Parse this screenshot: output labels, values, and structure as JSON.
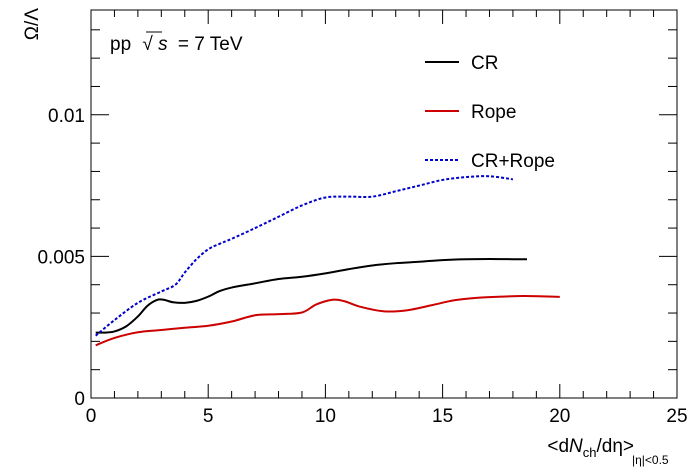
{
  "chart_data": {
    "type": "line",
    "annotation": {
      "prefix": "pp",
      "sqrt_symbol": "√",
      "variable": "s",
      "suffix": "= 7 TeV"
    },
    "xlabel": {
      "open": "<d",
      "N": "N",
      "ch": "ch",
      "rest": "/dη>",
      "sub": "|η|<0.5"
    },
    "ylabel": "Ω/Λ",
    "xlim": [
      0,
      25
    ],
    "ylim": [
      0,
      0.0137
    ],
    "x_ticks": [
      0,
      5,
      10,
      15,
      20,
      25
    ],
    "x_tick_labels": [
      "0",
      "5",
      "10",
      "15",
      "20",
      "25"
    ],
    "y_ticks": [
      0,
      0.005,
      0.01
    ],
    "y_tick_labels": [
      "0",
      "0.005",
      "0.01"
    ],
    "legend_position": "top-right",
    "grid": false,
    "series": [
      {
        "name": "CR",
        "color": "#000000",
        "style": "solid",
        "x": [
          0.2,
          0.6,
          1.0,
          1.5,
          2.0,
          2.4,
          2.8,
          3.1,
          3.5,
          4.0,
          4.5,
          5.0,
          5.5,
          6.0,
          7.0,
          8.0,
          9.0,
          10.0,
          11.0,
          12.0,
          13.0,
          14.0,
          15.0,
          16.0,
          17.0,
          18.0,
          18.6
        ],
        "y": [
          0.00231,
          0.00231,
          0.00235,
          0.00253,
          0.00288,
          0.00325,
          0.00346,
          0.00347,
          0.00338,
          0.00336,
          0.00343,
          0.00358,
          0.00378,
          0.0039,
          0.00405,
          0.0042,
          0.00428,
          0.0044,
          0.00455,
          0.00468,
          0.00476,
          0.00481,
          0.00487,
          0.0049,
          0.00491,
          0.0049,
          0.0049
        ]
      },
      {
        "name": "Rope",
        "color": "#cc0000",
        "style": "solid",
        "x": [
          0.2,
          1.0,
          2.0,
          3.0,
          4.0,
          5.0,
          6.0,
          7.0,
          8.0,
          9.0,
          9.6,
          10.3,
          10.8,
          11.5,
          12.5,
          13.5,
          14.5,
          15.5,
          16.5,
          17.5,
          18.5,
          20.0
        ],
        "y": [
          0.00186,
          0.00212,
          0.00232,
          0.0024,
          0.00248,
          0.00255,
          0.0027,
          0.00292,
          0.00296,
          0.00302,
          0.0033,
          0.00347,
          0.00342,
          0.00322,
          0.00306,
          0.0031,
          0.00327,
          0.00345,
          0.00354,
          0.00358,
          0.0036,
          0.00357
        ]
      },
      {
        "name": "CR+Rope",
        "color": "#0000cc",
        "style": "dotted",
        "x": [
          0.2,
          1.0,
          2.0,
          3.0,
          3.6,
          4.0,
          4.5,
          5.0,
          5.5,
          6.0,
          7.0,
          8.0,
          9.0,
          10.0,
          11.0,
          12.0,
          13.0,
          14.0,
          15.0,
          16.0,
          17.0,
          18.0
        ],
        "y": [
          0.0022,
          0.00275,
          0.00336,
          0.00376,
          0.004,
          0.00443,
          0.0049,
          0.00525,
          0.00545,
          0.00562,
          0.006,
          0.0064,
          0.0068,
          0.00708,
          0.00711,
          0.00711,
          0.0073,
          0.0075,
          0.0077,
          0.0078,
          0.00783,
          0.00772
        ]
      }
    ]
  }
}
